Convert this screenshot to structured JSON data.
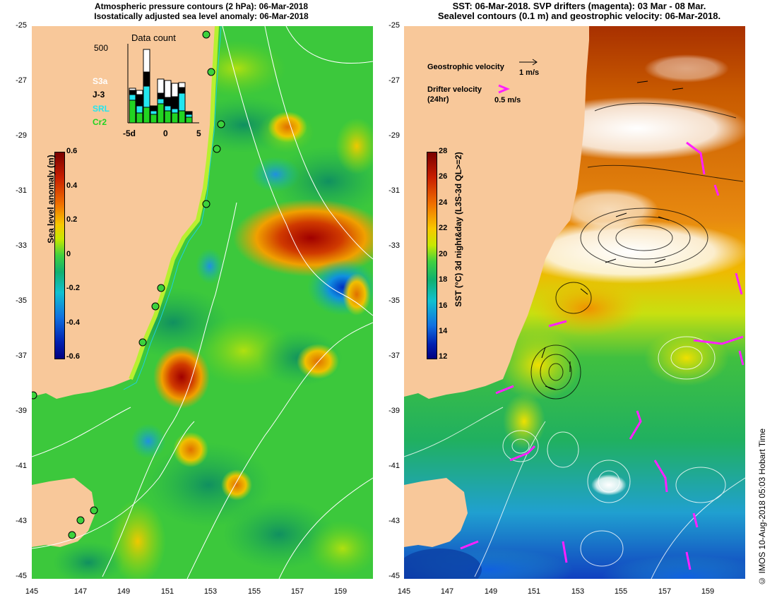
{
  "left_panel": {
    "title_line1": "Atmospheric pressure contours (2 hPa): 06-Mar-2018",
    "title_line2": "Isostatically adjusted sea level anomaly: 06-Mar-2018",
    "colorbar_label": "Sea level anomaly (m)",
    "colorbar_ticks": [
      "0.6",
      "0.4",
      "0.2",
      "0",
      "-0.2",
      "-0.4",
      "-0.6"
    ],
    "data_count": {
      "title": "Data count",
      "ymax_label": "500",
      "x_ticks": [
        "-5d",
        "0",
        "5"
      ],
      "legend": [
        {
          "name": "S3a",
          "color": "#ffffff"
        },
        {
          "name": "J-3",
          "color": "#000000"
        },
        {
          "name": "SRL",
          "color": "#22e6f0"
        },
        {
          "name": "Cr2",
          "color": "#22d422"
        }
      ]
    }
  },
  "right_panel": {
    "title_line1": "SST: 06-Mar-2018. SVP drifters (magenta): 03 Mar - 08 Mar.",
    "title_line2": "Sealevel contours (0.1 m) and geostrophic velocity: 06-Mar-2018.",
    "geostrophic_label": "Geostrophic velocity",
    "geostrophic_scale": "1 m/s",
    "drifter_label": "Drifter velocity",
    "drifter_sub": "(24hr)",
    "drifter_scale": "0.5 m/s",
    "colorbar_label": "SST (°C) 3d night&day (L3S-3d QL>=2)",
    "colorbar_ticks": [
      "28",
      "26",
      "24",
      "22",
      "20",
      "18",
      "16",
      "14",
      "12"
    ]
  },
  "axes": {
    "y_ticks": [
      "-25",
      "-27",
      "-29",
      "-31",
      "-33",
      "-35",
      "-37",
      "-39",
      "-41",
      "-43",
      "-45"
    ],
    "x_ticks": [
      "145",
      "147",
      "149",
      "151",
      "153",
      "155",
      "157",
      "159"
    ]
  },
  "credit": "© IMOS 10-Aug-2018 05:03 Hobart Time",
  "colors": {
    "land": "#f8c89a",
    "ocean_green": "#3cc83c",
    "sst_warm": "#e07a10"
  }
}
